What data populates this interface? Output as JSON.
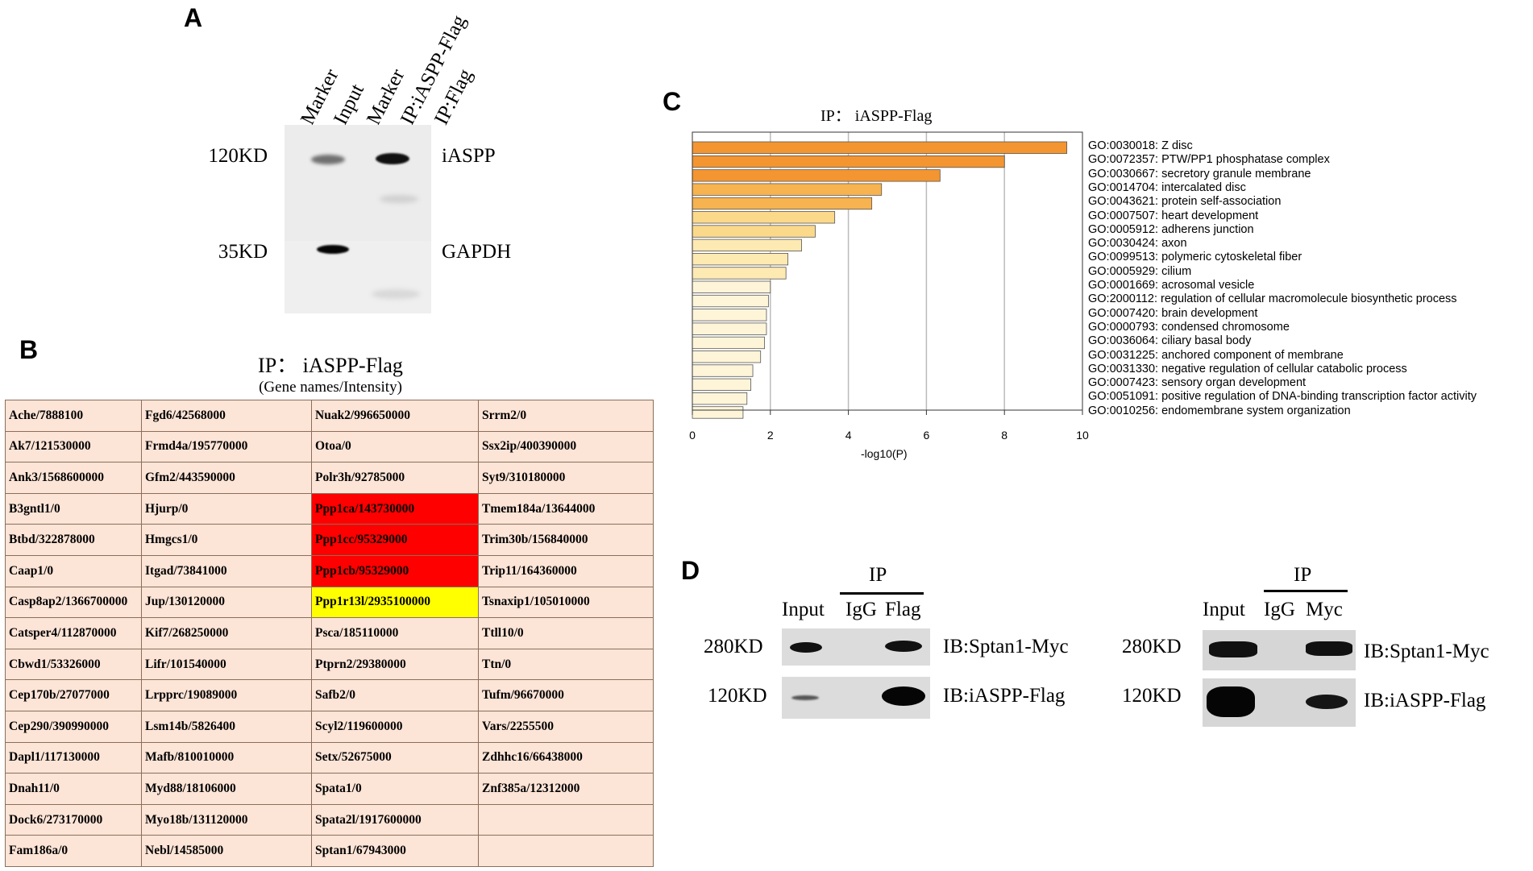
{
  "panels": {
    "a": "A",
    "b": "B",
    "c": "C",
    "d": "D"
  },
  "panel_a": {
    "lanes": [
      "Marker",
      "Input",
      "Marker",
      "IP:iASPP-Flag",
      "IP:Flag"
    ],
    "markers": [
      "120KD",
      "35KD"
    ],
    "proteins": [
      "iASPP",
      "GAPDH"
    ]
  },
  "panel_b": {
    "title": "IP： iASPP-Flag",
    "subtitle": "(Gene names/Intensity)",
    "rows": [
      [
        "Ache/7888100",
        "Fgd6/42568000",
        "Nuak2/996650000",
        "Srrm2/0"
      ],
      [
        "Ak7/121530000",
        "Frmd4a/195770000",
        "Otoa/0",
        "Ssx2ip/400390000"
      ],
      [
        "Ank3/1568600000",
        "Gfm2/443590000",
        "Polr3h/92785000",
        "Syt9/310180000"
      ],
      [
        "B3gntl1/0",
        "Hjurp/0",
        "Ppp1ca/143730000",
        "Tmem184a/13644000"
      ],
      [
        "Btbd/322878000",
        "Hmgcs1/0",
        "Ppp1cc/95329000",
        "Trim30b/156840000"
      ],
      [
        "Caap1/0",
        "Itgad/73841000",
        "Ppp1cb/95329000",
        "Trip11/164360000"
      ],
      [
        "Casp8ap2/1366700000",
        "Jup/130120000",
        "Ppp1r13l/2935100000",
        "Tsnaxip1/105010000"
      ],
      [
        "Catsper4/112870000",
        "Kif7/268250000",
        "Psca/185110000",
        "Ttll10/0"
      ],
      [
        "Cbwd1/53326000",
        "Lifr/101540000",
        "Ptprn2/29380000",
        "Ttn/0"
      ],
      [
        "Cep170b/27077000",
        "Lrpprc/19089000",
        "Safb2/0",
        "Tufm/96670000"
      ],
      [
        "Cep290/390990000",
        "Lsm14b/5826400",
        "Scyl2/119600000",
        "Vars/2255500"
      ],
      [
        "Dapl1/117130000",
        "Mafb/810010000",
        "Setx/52675000",
        "Zdhhc16/66438000"
      ],
      [
        "Dnah11/0",
        "Myd88/18106000",
        "Spata1/0",
        "Znf385a/12312000"
      ],
      [
        "Dock6/273170000",
        "Myo18b/131120000",
        "Spata2l/1917600000",
        ""
      ],
      [
        "Fam186a/0",
        "Nebl/14585000",
        "Sptan1/67943000",
        ""
      ]
    ],
    "highlight_red": [
      "Ppp1ca/143730000",
      "Ppp1cc/95329000",
      "Ppp1cb/95329000"
    ],
    "highlight_yellow": [
      "Ppp1r13l/2935100000"
    ]
  },
  "chart_data": {
    "type": "bar",
    "orientation": "horizontal",
    "title": "IP： iASPP-Flag",
    "xlabel": "-log10(P)",
    "ylabel": "",
    "xlim": [
      0,
      10
    ],
    "xticks": [
      0,
      2,
      4,
      6,
      8,
      10
    ],
    "grid": true,
    "categories": [
      "GO:0030018: Z disc",
      "GO:0072357: PTW/PP1 phosphatase complex",
      "GO:0030667: secretory granule membrane",
      "GO:0014704: intercalated disc",
      "GO:0043621: protein self-association",
      "GO:0007507: heart development",
      "GO:0005912: adherens junction",
      "GO:0030424: axon",
      "GO:0099513: polymeric cytoskeletal fiber",
      "GO:0005929: cilium",
      "GO:0001669: acrosomal vesicle",
      "GO:2000112: regulation of cellular macromolecule biosynthetic process",
      "GO:0007420: brain development",
      "GO:0000793: condensed chromosome",
      "GO:0036064: ciliary basal body",
      "GO:0031225: anchored component of membrane",
      "GO:0031330: negative regulation of cellular catabolic process",
      "GO:0007423: sensory organ development",
      "GO:0051091: positive regulation of DNA-binding transcription factor activity",
      "GO:0010256: endomembrane system organization"
    ],
    "values": [
      9.6,
      8.0,
      6.35,
      4.85,
      4.6,
      3.65,
      3.15,
      2.8,
      2.45,
      2.4,
      2.0,
      1.95,
      1.9,
      1.9,
      1.85,
      1.75,
      1.55,
      1.5,
      1.4,
      1.3
    ],
    "colors": [
      "#f39530",
      "#f39530",
      "#f39530",
      "#f7b34f",
      "#f7b34f",
      "#fbd98a",
      "#fbd98a",
      "#fde9b2",
      "#fde9b2",
      "#fde9b2",
      "#fef5d9",
      "#fef5d9",
      "#fef5d9",
      "#fef5d9",
      "#fef5d9",
      "#fef5d9",
      "#fef5d9",
      "#fef5d9",
      "#fef5d9",
      "#fef5d9"
    ]
  },
  "panel_d": {
    "left": {
      "ip": "IP",
      "lanes": [
        "Input",
        "IgG",
        "Flag"
      ],
      "markers": [
        "280KD",
        "120KD"
      ],
      "blots": [
        "IB:Sptan1-Myc",
        "IB:iASPP-Flag"
      ]
    },
    "right": {
      "ip": "IP",
      "lanes": [
        "Input",
        "IgG",
        "Myc"
      ],
      "markers": [
        "280KD",
        "120KD"
      ],
      "blots": [
        "IB:Sptan1-Myc",
        "IB:iASPP-Flag"
      ]
    }
  }
}
